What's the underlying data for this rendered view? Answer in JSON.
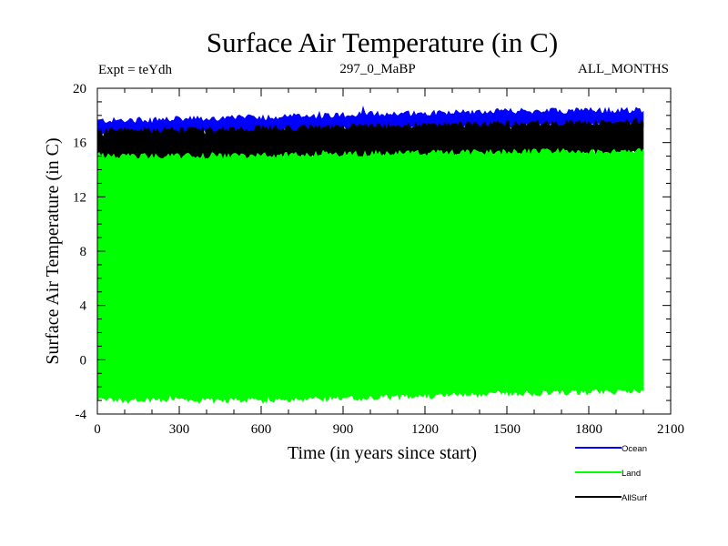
{
  "chart_data": {
    "type": "area",
    "title": "Surface Air Temperature (in C)",
    "subtitle_left": "Expt = teYdh",
    "subtitle_center": "297_0_MaBP",
    "subtitle_right": "ALL_MONTHS",
    "xlabel": "Time (in years since start)",
    "ylabel": "Surface Air Temperature (in C)",
    "xlim": [
      0,
      2100
    ],
    "ylim": [
      -4,
      20
    ],
    "x_ticks": [
      0,
      300,
      600,
      900,
      1200,
      1500,
      1800,
      2100
    ],
    "y_ticks": [
      -4,
      0,
      4,
      8,
      12,
      16,
      20
    ],
    "x_tick_labels": [
      "0",
      "300",
      "600",
      "900",
      "1200",
      "1500",
      "1800",
      "2100"
    ],
    "y_tick_labels": [
      "-4",
      "0",
      "4",
      "8",
      "12",
      "16",
      "20"
    ],
    "x_data_range": [
      0,
      2000
    ],
    "series": [
      {
        "name": "Ocean",
        "color": "#0000ff",
        "x": [
          0,
          500,
          1000,
          1500,
          2000
        ],
        "upper": [
          17.6,
          17.8,
          18.1,
          18.3,
          18.4
        ],
        "lower": [
          16.6,
          16.8,
          17.0,
          17.2,
          17.3
        ]
      },
      {
        "name": "AllSurf",
        "color": "#000000",
        "x": [
          0,
          500,
          1000,
          1500,
          2000
        ],
        "upper": [
          16.9,
          17.0,
          17.2,
          17.4,
          17.5
        ],
        "lower": [
          14.6,
          14.8,
          15.0,
          15.1,
          15.2
        ]
      },
      {
        "name": "Land",
        "color": "#00ff00",
        "x": [
          0,
          500,
          1000,
          1500,
          2000
        ],
        "upper": [
          15.0,
          15.0,
          15.2,
          15.3,
          15.4
        ],
        "lower": [
          -3.0,
          -3.0,
          -2.8,
          -2.5,
          -2.3
        ]
      }
    ],
    "legend": {
      "placement": "bottom-right",
      "entries": [
        {
          "label": "Ocean",
          "color": "#0000ff"
        },
        {
          "label": "Land",
          "color": "#00ff00"
        },
        {
          "label": "AllSurf",
          "color": "#000000"
        }
      ]
    }
  }
}
